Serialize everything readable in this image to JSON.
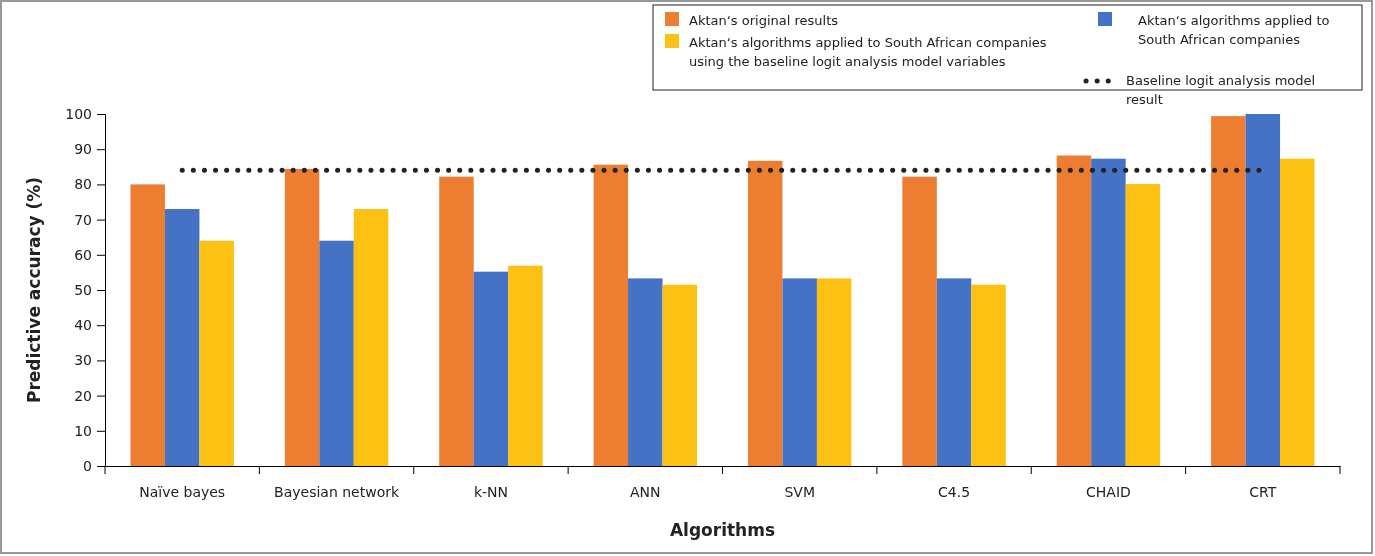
{
  "chart_data": {
    "type": "bar",
    "xlabel": "Algorithms",
    "ylabel": "Predictive accuracy (%)",
    "categories": [
      "Naïve bayes",
      "Bayesian network",
      "k-NN",
      "ANN",
      "SVM",
      "C4.5",
      "CHAID",
      "CRT"
    ],
    "series": [
      {
        "name": "Aktan‘s original results",
        "color": "#ed7d31",
        "values": [
          80,
          84.4,
          82.2,
          85.6,
          86.7,
          82.2,
          88.2,
          99.4
        ]
      },
      {
        "name": "Aktan‘s algorithms applied to South African companies",
        "color": "#4472c4",
        "values": [
          73,
          64,
          55.2,
          53.3,
          53.3,
          53.3,
          87.3,
          100
        ]
      },
      {
        "name": "Aktan‘s algorithms applied to South African companies using the baseline logit analysis model variables",
        "color": "#fcc113",
        "values": [
          64,
          73,
          56.9,
          51.5,
          53.3,
          51.5,
          80.1,
          87.3
        ]
      },
      {
        "name": "Baseline logit analysis model result",
        "type": "line",
        "color": "#222222",
        "line_style": "dotted",
        "values": [
          84,
          84,
          84,
          84,
          84,
          84,
          84,
          84
        ]
      }
    ],
    "ylim": [
      0,
      100
    ],
    "yticks": [
      0,
      10,
      20,
      30,
      40,
      50,
      60,
      70,
      80,
      90,
      100
    ],
    "grid": false,
    "legend": "top right"
  }
}
